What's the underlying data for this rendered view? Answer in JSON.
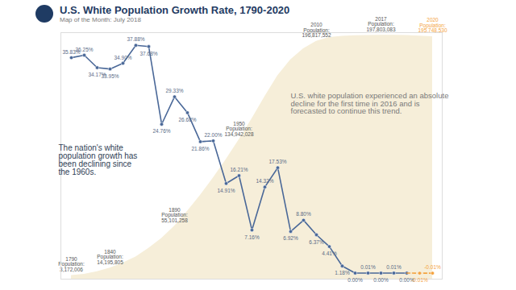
{
  "chart_data": {
    "type": "line",
    "title": "U.S. White Population Growth Rate, 1790-2020",
    "subtitle": "Map of the Month: July 2018",
    "categories": [
      null,
      null,
      null,
      null,
      null,
      null,
      null,
      null,
      null,
      null,
      null,
      null,
      null,
      null,
      null,
      null,
      null,
      null,
      null,
      null,
      null,
      null,
      null,
      null,
      null,
      null,
      null,
      null,
      null
    ],
    "series": [
      {
        "type": "area",
        "axis": "y2",
        "color": "#f6eed9",
        "values": [
          3000000,
          4000000,
          6000000,
          9000000,
          13000000,
          18000000,
          25000000,
          33000000,
          43000000,
          55000000,
          68000000,
          82000000,
          97000000,
          113000000,
          130000000,
          148000000,
          165000000,
          178000000,
          187000000,
          193000000,
          196000000,
          197000000,
          197500000,
          197700000,
          197800000,
          197800000,
          197700000,
          197300000,
          196800000
        ]
      },
      {
        "type": "line",
        "color": "#4a6898",
        "marker": "circle",
        "line_style": "solid",
        "values": [
          35.83,
          36.25,
          34.17,
          33.95,
          34.9,
          37.88,
          37.68,
          24.76,
          29.33,
          26.68,
          21.86,
          22.0,
          14.91,
          16.21,
          7.16,
          14.32,
          17.53,
          6.92,
          8.8,
          6.37,
          4.41,
          1.18,
          0.0,
          0.01,
          0.0,
          0.01,
          0.0,
          null,
          null
        ],
        "value_labels": [
          "35.83%",
          "36.25%",
          "34.17%",
          "33.95%",
          "34.90%",
          "37.88%",
          "37.68%",
          "24.76%",
          "29.33%",
          "26.68%",
          "21.86%",
          "22.00%",
          "14.91%",
          "16.21%",
          "7.16%",
          "14.32%",
          "17.53%",
          "6.92%",
          "8.80%",
          "6.37%",
          "4.41%",
          "1.18%",
          "0.00%",
          "0.01%",
          "0.00%",
          "0.01%",
          "0.00%",
          null,
          null
        ]
      },
      {
        "type": "line",
        "color": "#f4a340",
        "marker": "circle",
        "line_style": "dashed",
        "values": [
          null,
          null,
          null,
          null,
          null,
          null,
          null,
          null,
          null,
          null,
          null,
          null,
          null,
          null,
          null,
          null,
          null,
          null,
          null,
          null,
          null,
          null,
          null,
          null,
          null,
          null,
          null,
          -0.01,
          -0.01
        ],
        "value_labels": [
          null,
          null,
          null,
          null,
          null,
          null,
          null,
          null,
          null,
          null,
          null,
          null,
          null,
          null,
          null,
          null,
          null,
          null,
          null,
          null,
          null,
          null,
          null,
          null,
          null,
          null,
          null,
          "-0.01%",
          "-0.01%"
        ]
      }
    ],
    "ylim": [
      -1,
      40
    ],
    "y2lim": [
      0,
      200000000
    ],
    "tick_labels": false,
    "data_labels": true,
    "annotations": [
      {
        "text": "The nation's white population growth has been declining since the 1960s."
      },
      {
        "text": "U.S. white population experienced an absolute decline for the first time in 2016 and is forecasted to continue this trend."
      },
      {
        "x": 0,
        "lines": [
          "1790",
          "Population:",
          "3,172,006"
        ]
      },
      {
        "x": 3,
        "lines": [
          "1840",
          "Population:",
          "14,195,805"
        ]
      },
      {
        "x": 8,
        "lines": [
          "1890",
          "Population:",
          "55,101,258"
        ]
      },
      {
        "x": 13,
        "lines": [
          "1950",
          "Population:",
          "134,942,028"
        ]
      },
      {
        "x": 19,
        "lines": [
          "2010",
          "Population:",
          "196,817,552"
        ]
      },
      {
        "x": 24,
        "lines": [
          "2017",
          "Population:",
          "197,803,083"
        ]
      },
      {
        "x": 28,
        "lines": [
          "2020",
          "Population:",
          "195,748,530"
        ],
        "color": "#f4a340"
      }
    ]
  }
}
